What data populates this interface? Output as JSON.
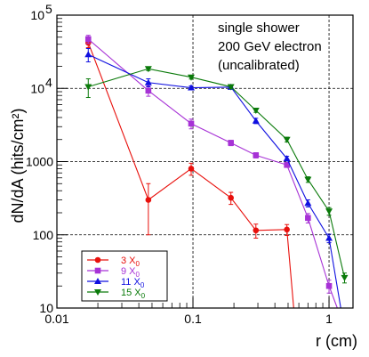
{
  "chart_data": {
    "type": "line",
    "xlabel": "r (cm)",
    "ylabel": "dN/dA (hits/cm²)",
    "xscale": "log",
    "yscale": "log",
    "xlim": [
      0.01,
      1.5
    ],
    "ylim": [
      10,
      100000
    ],
    "x_ticks": [
      {
        "value": 0.01,
        "label": "0.01"
      },
      {
        "value": 0.1,
        "label": "0.1"
      },
      {
        "value": 1,
        "label": "1"
      }
    ],
    "y_ticks": [
      {
        "value": 10,
        "label": "10"
      },
      {
        "value": 100,
        "label": "100"
      },
      {
        "value": 1000,
        "label": "1000"
      },
      {
        "value": 10000,
        "label": "10",
        "exponent": "4"
      },
      {
        "value": 100000,
        "label": "10",
        "exponent": "5"
      }
    ],
    "grid": "dashed at decade marks",
    "annotations": [
      "single shower",
      "200 GeV electron",
      "(uncalibrated)"
    ],
    "legend_position": "bottom-left",
    "series": [
      {
        "name": "3 X0",
        "label_main": "3 X",
        "label_sub": "0",
        "color": "#e8100c",
        "marker": "circle",
        "x": [
          0.017,
          0.047,
          0.097,
          0.19,
          0.29,
          0.49,
          0.55
        ],
        "y": [
          42000,
          300,
          800,
          320,
          115,
          118,
          10
        ],
        "err": [
          6000,
          200,
          150,
          60,
          25,
          20,
          0
        ]
      },
      {
        "name": "9 X0",
        "label_main": "9 X",
        "label_sub": "0",
        "color": "#a732d6",
        "marker": "square",
        "x": [
          0.017,
          0.047,
          0.097,
          0.19,
          0.29,
          0.49,
          0.7,
          1.0,
          1.15
        ],
        "y": [
          47000,
          9300,
          3300,
          1800,
          1220,
          900,
          170,
          20,
          10
        ],
        "err": [
          6000,
          1500,
          500,
          150,
          100,
          60,
          25,
          4,
          0
        ]
      },
      {
        "name": "11 X0",
        "label_main": "11 X",
        "label_sub": "0",
        "color": "#1010e0",
        "marker": "triangle-up",
        "x": [
          0.017,
          0.047,
          0.097,
          0.19,
          0.29,
          0.49,
          0.7,
          1.0,
          1.22
        ],
        "y": [
          29000,
          12000,
          10200,
          10400,
          3600,
          1100,
          270,
          90,
          10
        ],
        "err": [
          6000,
          1500,
          600,
          600,
          300,
          80,
          30,
          12,
          0
        ]
      },
      {
        "name": "15 X0",
        "label_main": "15 X",
        "label_sub": "0",
        "color": "#0a7a0a",
        "marker": "triangle-down",
        "x": [
          0.017,
          0.047,
          0.097,
          0.19,
          0.29,
          0.49,
          0.7,
          1.0,
          1.3
        ],
        "y": [
          10500,
          18500,
          14200,
          10500,
          5000,
          2000,
          570,
          210,
          26
        ],
        "err": [
          3000,
          1000,
          800,
          600,
          300,
          150,
          50,
          25,
          4
        ]
      }
    ]
  }
}
